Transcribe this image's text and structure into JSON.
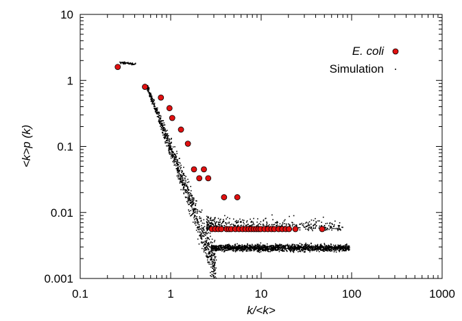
{
  "chart_data": {
    "type": "scatter",
    "x_scale": "log",
    "y_scale": "log",
    "xlim": [
      0.1,
      1000
    ],
    "ylim": [
      0.001,
      10
    ],
    "xlabel": "k/<k>",
    "ylabel": "<k>p (k)",
    "x_tick_labels": [
      {
        "value": 0.1,
        "label": "0.1"
      },
      {
        "value": 1,
        "label": "1"
      },
      {
        "value": 10,
        "label": "10"
      },
      {
        "value": 100,
        "label": "100"
      },
      {
        "value": 1000,
        "label": "1000"
      }
    ],
    "y_tick_labels": [
      {
        "value": 0.001,
        "label": "0.001"
      },
      {
        "value": 0.01,
        "label": "0.01"
      },
      {
        "value": 0.1,
        "label": "0.1"
      },
      {
        "value": 1,
        "label": "1"
      },
      {
        "value": 10,
        "label": "10"
      }
    ],
    "legend_position": "top-right",
    "grid": false,
    "series": [
      {
        "name": "E. coli",
        "marker": "circle",
        "color": "#e01010",
        "x": [
          0.26,
          0.52,
          0.78,
          0.97,
          1.04,
          1.3,
          1.55,
          1.81,
          2.07,
          2.33,
          2.6,
          2.85,
          3.11,
          3.37,
          3.63,
          3.89,
          4.15,
          4.41,
          4.67,
          5.19,
          5.45,
          5.7,
          6.23,
          6.75,
          7.27,
          7.78,
          8.3,
          8.82,
          9.35,
          9.87,
          10.9,
          11.9,
          13.0,
          14.0,
          15.6,
          17.1,
          18.7,
          20.3,
          23.9,
          47.2
        ],
        "y": [
          1.6,
          0.8,
          0.55,
          0.38,
          0.27,
          0.18,
          0.11,
          0.045,
          0.033,
          0.045,
          0.033,
          0.0056,
          0.0056,
          0.0056,
          0.0056,
          0.017,
          0.0056,
          0.0056,
          0.0056,
          0.0056,
          0.017,
          0.0056,
          0.0056,
          0.0056,
          0.0056,
          0.0056,
          0.0056,
          0.0056,
          0.0056,
          0.0056,
          0.0056,
          0.0056,
          0.0056,
          0.0056,
          0.0056,
          0.0056,
          0.0056,
          0.0056,
          0.0056,
          0.0056
        ]
      },
      {
        "name": "Simulation",
        "marker": "dot",
        "color": "#000000",
        "description_ranges": [
          {
            "x": [
              0.26,
              0.4
            ],
            "y_center": 1.85,
            "spread": 0.06
          },
          {
            "x": [
              0.55,
              3.0
            ],
            "y_trend": "power-law decay 0.8 -> 0.012",
            "spread": 0.35
          },
          {
            "x": [
              2.8,
              90
            ],
            "y_band": [
              0.0025,
              0.0035
            ]
          },
          {
            "x": [
              2.5,
              80
            ],
            "y_band": [
              0.0045,
              0.016
            ]
          }
        ]
      }
    ]
  }
}
